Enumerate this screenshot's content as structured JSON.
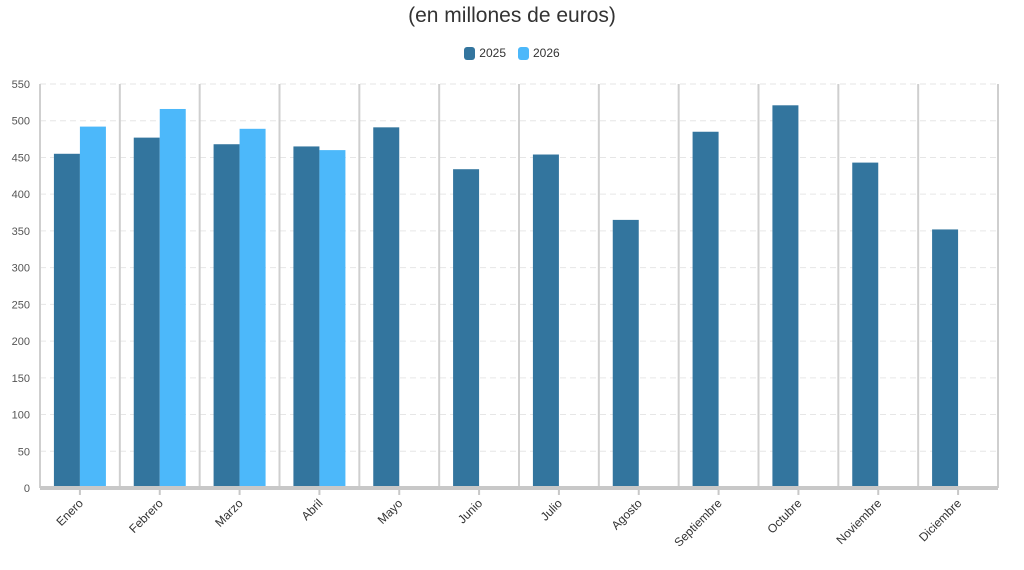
{
  "chart_data": {
    "type": "bar",
    "title": "",
    "subtitle": "(en millones de euros)",
    "categories": [
      "Enero",
      "Febrero",
      "Marzo",
      "Abril",
      "Mayo",
      "Junio",
      "Julio",
      "Agosto",
      "Septiembre",
      "Octubre",
      "Noviembre",
      "Diciembre"
    ],
    "series": [
      {
        "name": "2025",
        "color": "#33759e",
        "values": [
          455,
          477,
          468,
          465,
          491,
          434,
          454,
          365,
          485,
          521,
          443,
          352
        ]
      },
      {
        "name": "2026",
        "color": "#4cb8fa",
        "values": [
          492,
          516,
          489,
          460,
          null,
          null,
          null,
          null,
          null,
          null,
          null,
          null
        ]
      }
    ],
    "yticks": [
      0,
      50,
      100,
      150,
      200,
      250,
      300,
      350,
      400,
      450,
      500,
      550
    ],
    "ylim": [
      0,
      550
    ],
    "grid": true,
    "legend_position": "top-center"
  }
}
